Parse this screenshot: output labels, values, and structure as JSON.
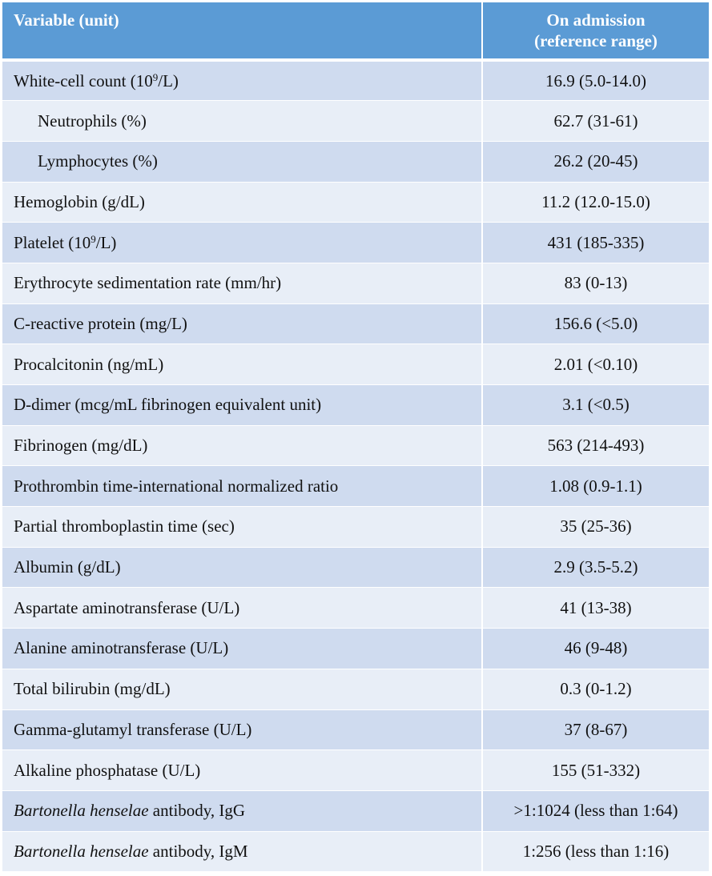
{
  "table": {
    "header": {
      "variable": "Variable (unit)",
      "value_line1": "On admission",
      "value_line2": "(reference range)"
    },
    "rows": [
      {
        "pre": "White-cell count (10",
        "sup": "9",
        "post": "/L)",
        "value": "16.9 (5.0-14.0)"
      },
      {
        "label": "Neutrophils (%)",
        "value": "62.7 (31-61)"
      },
      {
        "label": "Lymphocytes (%)",
        "value": "26.2 (20-45)"
      },
      {
        "label": "Hemoglobin (g/dL)",
        "value": "11.2 (12.0-15.0)"
      },
      {
        "pre": "Platelet (10",
        "sup": "9",
        "post": "/L)",
        "value": "431 (185-335)"
      },
      {
        "label": "Erythrocyte sedimentation rate (mm/hr)",
        "value": "83 (0-13)"
      },
      {
        "label": "C-reactive protein (mg/L)",
        "value": "156.6 (<5.0)"
      },
      {
        "label": "Procalcitonin (ng/mL)",
        "value": "2.01 (<0.10)"
      },
      {
        "label": "D-dimer (mcg/mL fibrinogen equivalent unit)",
        "value": "3.1 (<0.5)"
      },
      {
        "label": "Fibrinogen (mg/dL)",
        "value": "563 (214-493)"
      },
      {
        "label": "Prothrombin time-international normalized ratio",
        "value": "1.08 (0.9-1.1)"
      },
      {
        "label": "Partial thromboplastin time (sec)",
        "value": "35 (25-36)"
      },
      {
        "label": "Albumin (g/dL)",
        "value": "2.9 (3.5-5.2)"
      },
      {
        "label": "Aspartate aminotransferase (U/L)",
        "value": "41 (13-38)"
      },
      {
        "label": "Alanine aminotransferase (U/L)",
        "value": "46 (9-48)"
      },
      {
        "label": "Total bilirubin (mg/dL)",
        "value": "0.3 (0-1.2)"
      },
      {
        "label": "Gamma-glutamyl transferase (U/L)",
        "value": "37 (8-67)"
      },
      {
        "label": "Alkaline phosphatase (U/L)",
        "value": "155 (51-332)"
      },
      {
        "italic": "Bartonella henselae",
        "rest": " antibody, IgG",
        "value": ">1:1024 (less than 1:64)"
      },
      {
        "italic": "Bartonella henselae",
        "rest": " antibody, IgM",
        "value": "1:256 (less than 1:16)"
      }
    ]
  }
}
